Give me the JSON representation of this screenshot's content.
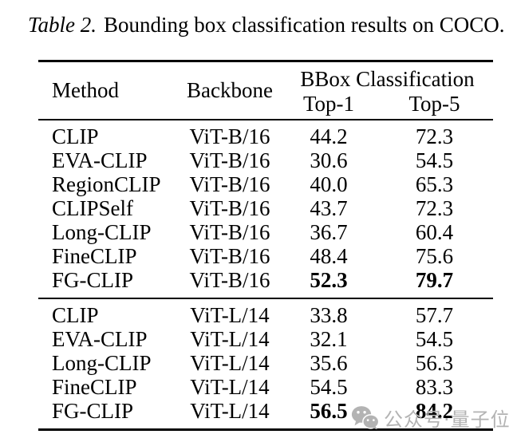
{
  "title": {
    "label": "Table 2.",
    "text": "Bounding box classification results on COCO."
  },
  "table": {
    "headers": {
      "method": "Method",
      "backbone": "Backbone",
      "group": "BBox Classification",
      "top1": "Top-1",
      "top5": "Top-5"
    },
    "groups": [
      {
        "rows": [
          {
            "method": "CLIP",
            "backbone": "ViT-B/16",
            "top1": "44.2",
            "top5": "72.3",
            "bold": false
          },
          {
            "method": "EVA-CLIP",
            "backbone": "ViT-B/16",
            "top1": "30.6",
            "top5": "54.5",
            "bold": false
          },
          {
            "method": "RegionCLIP",
            "backbone": "ViT-B/16",
            "top1": "40.0",
            "top5": "65.3",
            "bold": false
          },
          {
            "method": "CLIPSelf",
            "backbone": "ViT-B/16",
            "top1": "43.7",
            "top5": "72.3",
            "bold": false
          },
          {
            "method": "Long-CLIP",
            "backbone": "ViT-B/16",
            "top1": "36.7",
            "top5": "60.4",
            "bold": false
          },
          {
            "method": "FineCLIP",
            "backbone": "ViT-B/16",
            "top1": "48.4",
            "top5": "75.6",
            "bold": false
          },
          {
            "method": "FG-CLIP",
            "backbone": "ViT-B/16",
            "top1": "52.3",
            "top5": "79.7",
            "bold": true
          }
        ]
      },
      {
        "rows": [
          {
            "method": "CLIP",
            "backbone": "ViT-L/14",
            "top1": "33.8",
            "top5": "57.7",
            "bold": false
          },
          {
            "method": "EVA-CLIP",
            "backbone": "ViT-L/14",
            "top1": "32.1",
            "top5": "54.5",
            "bold": false
          },
          {
            "method": "Long-CLIP",
            "backbone": "ViT-L/14",
            "top1": "35.6",
            "top5": "56.3",
            "bold": false
          },
          {
            "method": "FineCLIP",
            "backbone": "ViT-L/14",
            "top1": "54.5",
            "top5": "83.3",
            "bold": false
          },
          {
            "method": "FG-CLIP",
            "backbone": "ViT-L/14",
            "top1": "56.5",
            "top5": "84.2",
            "bold": true
          }
        ]
      }
    ]
  },
  "watermark": {
    "icon": "wechat-icon",
    "text": "公众号·量子位"
  },
  "colors": {
    "text": "#000000",
    "rule": "#000000",
    "background": "#ffffff",
    "watermark": "#b3b3b3"
  }
}
